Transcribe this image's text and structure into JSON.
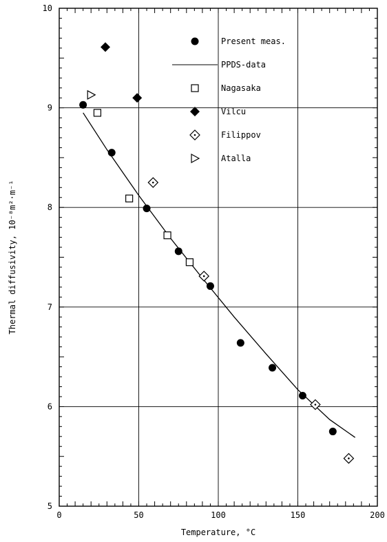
{
  "chart_data": {
    "type": "scatter",
    "xlabel": "Temperature, °C",
    "ylabel": "Thermal diffusivity, 10⁻⁸m²·m⁻¹",
    "xlim": [
      0,
      200
    ],
    "ylim": [
      5,
      10
    ],
    "x_ticks": [
      "0",
      "50",
      "100",
      "150",
      "200"
    ],
    "y_ticks": [
      "5",
      "6",
      "7",
      "8",
      "9",
      "10"
    ],
    "grid": true,
    "legend_position": "top-right",
    "series": [
      {
        "name": "Present meas.",
        "marker": "filled-circle",
        "points": [
          {
            "x": 15,
            "y": 9.03
          },
          {
            "x": 33,
            "y": 8.55
          },
          {
            "x": 55,
            "y": 7.99
          },
          {
            "x": 75,
            "y": 7.56
          },
          {
            "x": 95,
            "y": 7.21
          },
          {
            "x": 114,
            "y": 6.64
          },
          {
            "x": 134,
            "y": 6.39
          },
          {
            "x": 153,
            "y": 6.11
          },
          {
            "x": 172,
            "y": 5.75
          }
        ]
      },
      {
        "name": "PPDS-data",
        "marker": "line",
        "points": [
          {
            "x": 15,
            "y": 8.95
          },
          {
            "x": 30,
            "y": 8.58
          },
          {
            "x": 50,
            "y": 8.12
          },
          {
            "x": 70,
            "y": 7.69
          },
          {
            "x": 90,
            "y": 7.29
          },
          {
            "x": 110,
            "y": 6.9
          },
          {
            "x": 130,
            "y": 6.53
          },
          {
            "x": 150,
            "y": 6.17
          },
          {
            "x": 170,
            "y": 5.87
          },
          {
            "x": 186,
            "y": 5.69
          }
        ]
      },
      {
        "name": "Nagasaka",
        "marker": "open-square",
        "points": [
          {
            "x": 24,
            "y": 8.95
          },
          {
            "x": 44,
            "y": 8.09
          },
          {
            "x": 68,
            "y": 7.72
          },
          {
            "x": 82,
            "y": 7.45
          }
        ]
      },
      {
        "name": "Vilcu",
        "marker": "filled-diamond",
        "points": [
          {
            "x": 29,
            "y": 9.61
          },
          {
            "x": 49,
            "y": 9.1
          }
        ]
      },
      {
        "name": "Filippov",
        "marker": "dotted-diamond",
        "points": [
          {
            "x": 59,
            "y": 8.25
          },
          {
            "x": 91,
            "y": 7.31
          },
          {
            "x": 161,
            "y": 6.02
          },
          {
            "x": 182,
            "y": 5.48
          }
        ]
      },
      {
        "name": "Atalla",
        "marker": "open-triangle",
        "points": [
          {
            "x": 20,
            "y": 9.13
          }
        ]
      }
    ]
  }
}
